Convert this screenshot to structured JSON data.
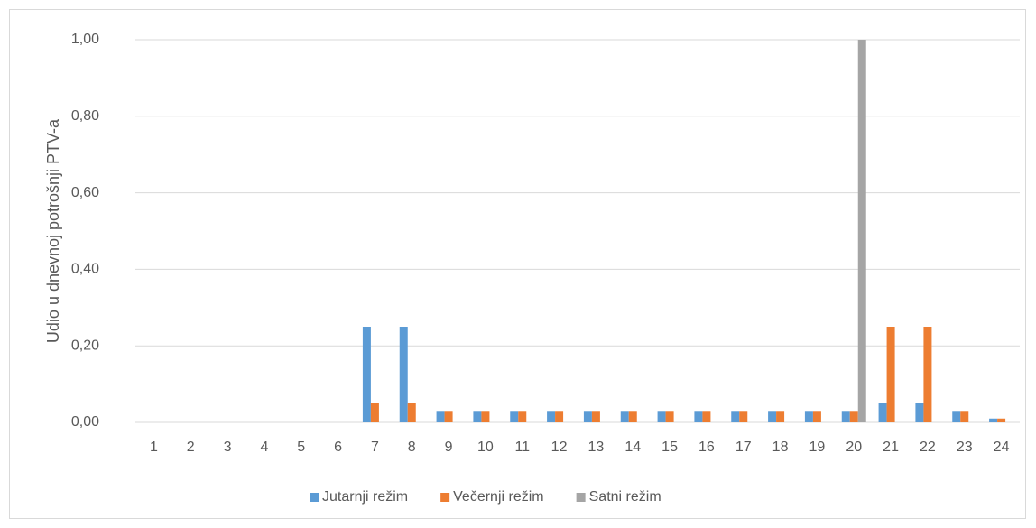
{
  "chart_data": {
    "type": "bar",
    "y_label": "Udio u dnevnoj potrošnji PTV-a",
    "categories": [
      "1",
      "2",
      "3",
      "4",
      "5",
      "6",
      "7",
      "8",
      "9",
      "10",
      "11",
      "12",
      "13",
      "14",
      "15",
      "16",
      "17",
      "18",
      "19",
      "20",
      "21",
      "22",
      "23",
      "24"
    ],
    "series": [
      {
        "name": "Jutarnji režim",
        "color": "#5b9bd5",
        "values": [
          0,
          0,
          0,
          0,
          0,
          0,
          0.25,
          0.25,
          0.03,
          0.03,
          0.03,
          0.03,
          0.03,
          0.03,
          0.03,
          0.03,
          0.03,
          0.03,
          0.03,
          0.03,
          0.05,
          0.05,
          0.03,
          0.01
        ]
      },
      {
        "name": "Večernji režim",
        "color": "#ed7d31",
        "values": [
          0,
          0,
          0,
          0,
          0,
          0,
          0.05,
          0.05,
          0.03,
          0.03,
          0.03,
          0.03,
          0.03,
          0.03,
          0.03,
          0.03,
          0.03,
          0.03,
          0.03,
          0.03,
          0.25,
          0.25,
          0.03,
          0.01
        ]
      },
      {
        "name": "Satni režim",
        "color": "#a5a5a5",
        "values": [
          0,
          0,
          0,
          0,
          0,
          0,
          0,
          0,
          0,
          0,
          0,
          0,
          0,
          0,
          0,
          0,
          0,
          0,
          0,
          1,
          0,
          0,
          0,
          0
        ]
      }
    ],
    "ylim": [
      0,
      1
    ],
    "yticks": [
      {
        "value": 0,
        "label": "0,00"
      },
      {
        "value": 0.2,
        "label": "0,20"
      },
      {
        "value": 0.4,
        "label": "0,40"
      },
      {
        "value": 0.6,
        "label": "0,60"
      },
      {
        "value": 0.8,
        "label": "0,80"
      },
      {
        "value": 1,
        "label": "1,00"
      }
    ],
    "grid": true,
    "legend": "bottom"
  }
}
